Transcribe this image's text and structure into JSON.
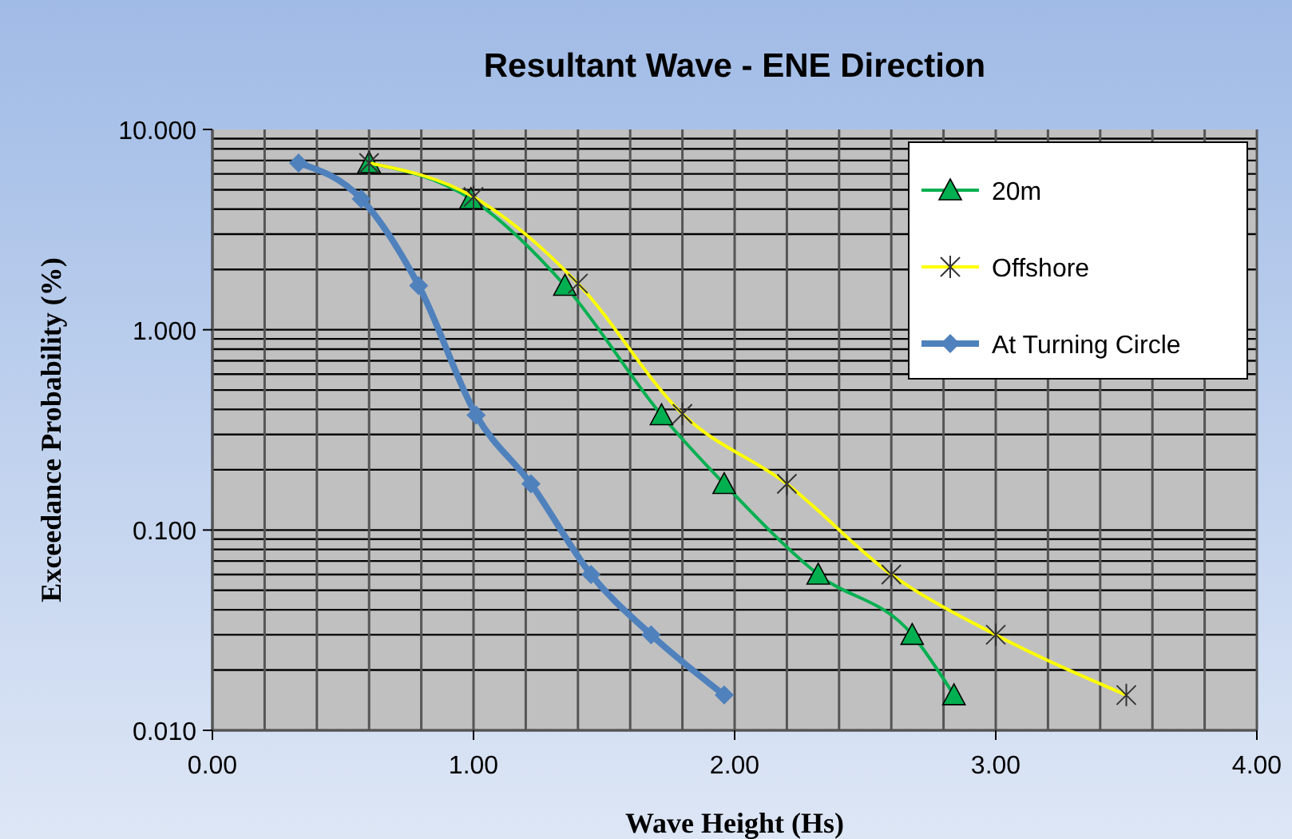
{
  "chart_data": {
    "type": "line",
    "title": "Resultant Wave - ENE Direction",
    "xlabel": "Wave Height (Hs)",
    "ylabel": "Exceedance Probability (%)",
    "log": "y",
    "grid": true,
    "legend": "top right",
    "xlim": [
      0,
      4
    ],
    "xticks": [
      {
        "value": 0,
        "label": "0.00"
      },
      {
        "value": 1,
        "label": "1.00"
      },
      {
        "value": 2,
        "label": "2.00"
      },
      {
        "value": 3,
        "label": "3.00"
      },
      {
        "value": 4,
        "label": "4.00"
      }
    ],
    "ylim": [
      0.01,
      10
    ],
    "yticks": [
      {
        "value": 0.01,
        "label": "0.010"
      },
      {
        "value": 0.1,
        "label": "0.100"
      },
      {
        "value": 1,
        "label": "1.000"
      },
      {
        "value": 10,
        "label": "10.000"
      }
    ],
    "series": [
      {
        "name": "20m",
        "color": "#00b050",
        "marker": "triangle",
        "x": [
          0.6,
          0.99,
          1.35,
          1.72,
          1.96,
          2.32,
          2.68,
          2.84
        ],
        "values": [
          6.8,
          4.5,
          1.66,
          0.375,
          0.17,
          0.06,
          0.03,
          0.015
        ]
      },
      {
        "name": "Offshore",
        "color": "#ffff00",
        "marker": "cross",
        "x": [
          0.6,
          1.0,
          1.4,
          1.8,
          2.2,
          2.6,
          3.0,
          3.5
        ],
        "values": [
          6.8,
          4.6,
          1.7,
          0.38,
          0.17,
          0.06,
          0.03,
          0.015
        ]
      },
      {
        "name": "At Turning Circle",
        "color": "#4f81bd",
        "marker": "diamond",
        "x": [
          0.33,
          0.57,
          0.79,
          1.01,
          1.22,
          1.45,
          1.68,
          1.96
        ],
        "values": [
          6.8,
          4.5,
          1.66,
          0.375,
          0.17,
          0.06,
          0.03,
          0.015
        ]
      }
    ]
  }
}
